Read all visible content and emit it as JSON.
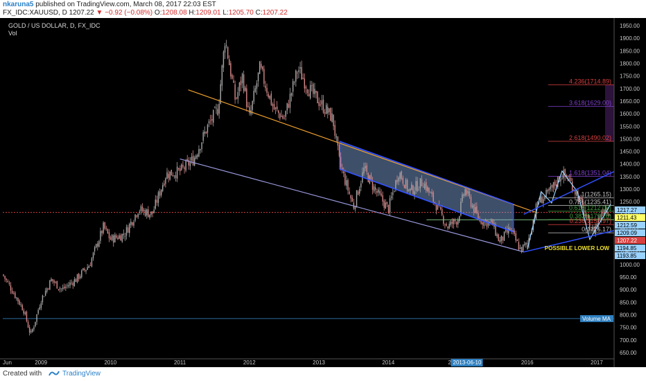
{
  "header": {
    "user": "nkaruna5",
    "published": "published on TradingView.com, March 08, 2017 22:03 EST",
    "symbol": "FX_IDC:XAUUSD, D",
    "last": "1207.22",
    "change_arrow": "▼",
    "change": "−0.92 (−0.08%)",
    "o_label": "O:",
    "o_value": "1208.08",
    "h_label": "H:",
    "h_value": "1209.01",
    "l_label": "L:",
    "l_value": "1205.70",
    "c_label": "C:",
    "c_value": "1207.22"
  },
  "footer": {
    "created": "Created with",
    "brand": "TradingView"
  },
  "colors": {
    "background": "#000000",
    "candle_up": "#a9a9a9",
    "candle_down": "#d98a8a",
    "trend_orange": "#f0a030",
    "trend_lavender": "#9a9ae0",
    "channel_blue": "#3050ff",
    "channel_fill": "#8ab0e8",
    "fib_red": "#d84040",
    "fib_purple": "#8040d0",
    "fib_green": "#40a040",
    "axis_text": "#c8c8c8"
  },
  "chart_data": {
    "type": "candlestick",
    "title": "GOLD / US DOLLAR, D, FX_IDC",
    "subtitle": "Vol",
    "ylim": [
      625,
      1975
    ],
    "y_ticks": [
      650,
      700,
      750,
      800,
      850,
      900,
      950,
      1000,
      1050,
      1100,
      1150,
      1200,
      1250,
      1300,
      1350,
      1400,
      1450,
      1500,
      1550,
      1600,
      1650,
      1700,
      1750,
      1800,
      1850,
      1900,
      1950
    ],
    "y_tick_labels": [
      "650.00",
      "700.00",
      "750.00",
      "800.00",
      "850.00",
      "900.00",
      "950.00",
      "1000.00",
      "1050.00",
      "1100.00",
      "1150.00",
      "1200.00",
      "1250.00",
      "1300.00",
      "1350.00",
      "1400.00",
      "1450.00",
      "1500.00",
      "1550.00",
      "1600.00",
      "1650.00",
      "1700.00",
      "1750.00",
      "1800.00",
      "1850.00",
      "1900.00",
      "1950.00"
    ],
    "xlim": [
      2008.45,
      2017.25
    ],
    "x_ticks": [
      {
        "t": 2008.45,
        "label": "Jun"
      },
      {
        "t": 2009.0,
        "label": "2009"
      },
      {
        "t": 2010.0,
        "label": "2010"
      },
      {
        "t": 2011.0,
        "label": "2011"
      },
      {
        "t": 2012.0,
        "label": "2012"
      },
      {
        "t": 2013.0,
        "label": "2013"
      },
      {
        "t": 2014.0,
        "label": "2014"
      },
      {
        "t": 2016.0,
        "label": "2016"
      },
      {
        "t": 2017.0,
        "label": "2017"
      }
    ],
    "x_marker": {
      "t": 2015.2,
      "label": "2013-06-10",
      "prefix": "2"
    },
    "price_path": [
      [
        2008.45,
        960
      ],
      [
        2008.6,
        890
      ],
      [
        2008.75,
        820
      ],
      [
        2008.85,
        720
      ],
      [
        2008.9,
        760
      ],
      [
        2009.0,
        860
      ],
      [
        2009.15,
        940
      ],
      [
        2009.3,
        900
      ],
      [
        2009.5,
        940
      ],
      [
        2009.7,
        1000
      ],
      [
        2009.9,
        1150
      ],
      [
        2010.0,
        1100
      ],
      [
        2010.2,
        1120
      ],
      [
        2010.4,
        1220
      ],
      [
        2010.6,
        1200
      ],
      [
        2010.8,
        1360
      ],
      [
        2011.0,
        1370
      ],
      [
        2011.2,
        1420
      ],
      [
        2011.4,
        1550
      ],
      [
        2011.55,
        1620
      ],
      [
        2011.65,
        1900
      ],
      [
        2011.8,
        1650
      ],
      [
        2011.9,
        1750
      ],
      [
        2012.0,
        1580
      ],
      [
        2012.15,
        1780
      ],
      [
        2012.35,
        1620
      ],
      [
        2012.5,
        1580
      ],
      [
        2012.7,
        1780
      ],
      [
        2012.85,
        1700
      ],
      [
        2013.0,
        1650
      ],
      [
        2013.2,
        1580
      ],
      [
        2013.3,
        1400
      ],
      [
        2013.5,
        1230
      ],
      [
        2013.65,
        1380
      ],
      [
        2013.8,
        1300
      ],
      [
        2014.0,
        1220
      ],
      [
        2014.15,
        1370
      ],
      [
        2014.3,
        1290
      ],
      [
        2014.5,
        1330
      ],
      [
        2014.7,
        1230
      ],
      [
        2014.85,
        1150
      ],
      [
        2015.0,
        1180
      ],
      [
        2015.1,
        1300
      ],
      [
        2015.3,
        1180
      ],
      [
        2015.5,
        1160
      ],
      [
        2015.6,
        1090
      ],
      [
        2015.75,
        1140
      ],
      [
        2015.9,
        1060
      ],
      [
        2016.0,
        1080
      ],
      [
        2016.15,
        1250
      ],
      [
        2016.3,
        1280
      ],
      [
        2016.5,
        1360
      ],
      [
        2016.6,
        1340
      ],
      [
        2016.75,
        1260
      ],
      [
        2016.85,
        1180
      ],
      [
        2016.95,
        1130
      ],
      [
        2017.1,
        1230
      ],
      [
        2017.2,
        1207
      ]
    ],
    "price_line": 1207.22,
    "support_line": 1178,
    "volume_ma_level": 785,
    "price_badges": [
      {
        "label": "1217.27",
        "y": 1217.27,
        "bg": "#9ad3ff",
        "fg": "#000000"
      },
      {
        "label": "1211.43",
        "y": 1211.43,
        "bg": "#ffff66",
        "fg": "#000000"
      },
      {
        "label": "1212.59",
        "y": 1212.59,
        "bg": "#9ad3ff",
        "fg": "#000000"
      },
      {
        "label": "1209.09",
        "y": 1209.09,
        "bg": "#9ad3ff",
        "fg": "#000000"
      },
      {
        "label": "1207.22",
        "y": 1207.22,
        "bg": "#d84040",
        "fg": "#ffffff"
      },
      {
        "label": "1194.85",
        "y": 1194.85,
        "bg": "#9ad3ff",
        "fg": "#000000"
      },
      {
        "label": "1193.85",
        "y": 1193.85,
        "bg": "#9ad3ff",
        "fg": "#000000"
      }
    ],
    "volume_ma_label": "Volume MA",
    "trendlines": [
      {
        "name": "orange",
        "from": [
          2011.12,
          1695
        ],
        "to": [
          2016.15,
          1205
        ]
      },
      {
        "name": "lavender",
        "from": [
          2011.0,
          1420
        ],
        "to": [
          2015.95,
          1050
        ]
      }
    ],
    "channel": {
      "upper": [
        [
          2013.3,
          1490
        ],
        [
          2015.8,
          1240
        ]
      ],
      "lower": [
        [
          2013.3,
          1380
        ],
        [
          2015.8,
          1130
        ]
      ]
    },
    "fibonacci": {
      "levels": [
        {
          "ratio": "4.236",
          "value": "1714.89",
          "y": 1714.89,
          "color": "#d84040"
        },
        {
          "ratio": "3.618",
          "value": "1629.00",
          "y": 1629.0,
          "color": "#8040d0"
        },
        {
          "ratio": "2.618",
          "value": "1490.02",
          "y": 1490.02,
          "color": "#d84040"
        },
        {
          "ratio": "1.618",
          "value": "1351.04",
          "y": 1351.04,
          "color": "#8040d0"
        },
        {
          "ratio": "1",
          "value": "1265.15",
          "y": 1265.15,
          "color": "#c0c0c0"
        },
        {
          "ratio": "0.786",
          "value": "1235.41",
          "y": 1235.41,
          "color": "#c0c0c0"
        },
        {
          "ratio": "0.618",
          "value": "1212.06",
          "y": 1212.06,
          "color": "#40a040"
        },
        {
          "ratio": "0.382",
          "value": "1179.26",
          "y": 1179.26,
          "color": "#40a040"
        },
        {
          "ratio": "0.236",
          "value": "1158.97",
          "y": 1158.97,
          "color": "#d84040"
        },
        {
          "ratio": "0",
          "value": "1126.17",
          "y": 1126.17,
          "color": "#c0c0c0"
        }
      ],
      "x_from": 2016.3,
      "x_to": 2017.25
    },
    "lower_low_label": "POSSIBLE LOWER LOW",
    "lower_low_point": [
      2016.9,
      1100
    ]
  }
}
